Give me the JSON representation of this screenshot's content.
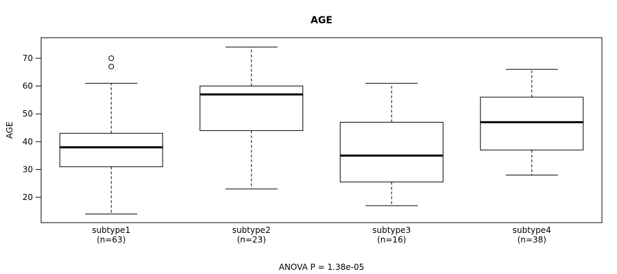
{
  "chart_data": {
    "type": "boxplot",
    "title": "AGE",
    "ylabel": "AGE",
    "caption": "ANOVA P = 1.38e-05",
    "ylim": [
      10.9,
      77.4
    ],
    "yticks": [
      20,
      30,
      40,
      50,
      60,
      70
    ],
    "grid": false,
    "categories": [
      "subtype1",
      "subtype2",
      "subtype3",
      "subtype4"
    ],
    "n_labels": [
      "(n=63)",
      "(n=23)",
      "(n=16)",
      "(n=38)"
    ],
    "series": [
      {
        "name": "subtype1",
        "n": 63,
        "low": 14,
        "q1": 31,
        "median": 38,
        "q3": 43,
        "high": 61,
        "outliers": [
          67,
          70
        ]
      },
      {
        "name": "subtype2",
        "n": 23,
        "low": 23,
        "q1": 44,
        "median": 57,
        "q3": 60,
        "high": 74,
        "outliers": []
      },
      {
        "name": "subtype3",
        "n": 16,
        "low": 17,
        "q1": 25.5,
        "median": 35,
        "q3": 47,
        "high": 61,
        "outliers": []
      },
      {
        "name": "subtype4",
        "n": 38,
        "low": 28,
        "q1": 37,
        "median": 47,
        "q3": 56,
        "high": 66,
        "outliers": []
      }
    ],
    "colors": {
      "stroke": "#000000",
      "fill": "#ffffff"
    }
  }
}
